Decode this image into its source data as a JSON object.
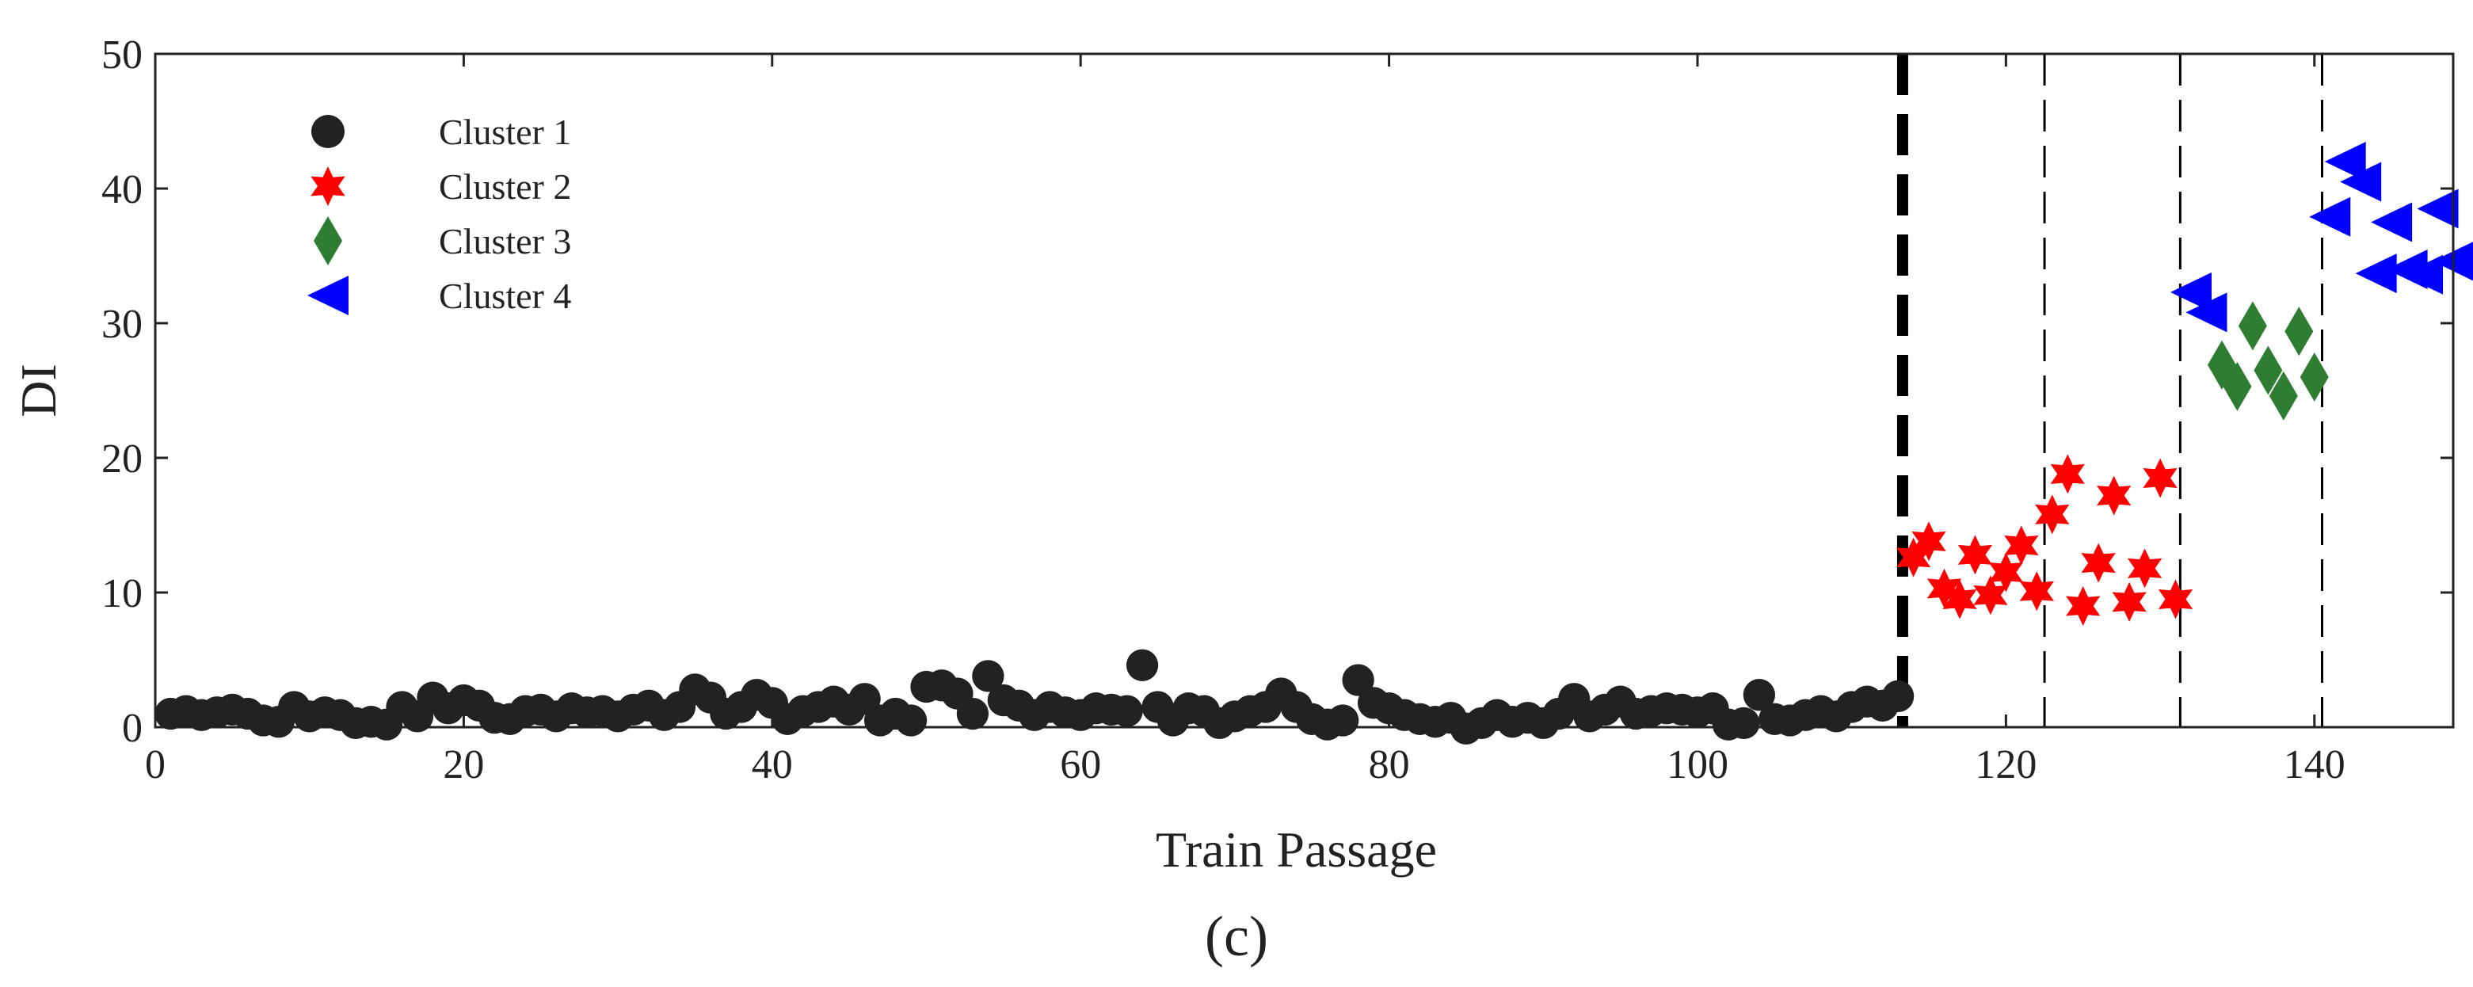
{
  "chart_data": {
    "type": "scatter",
    "title": "",
    "xlabel": "Train Passage",
    "ylabel": "DI",
    "caption": "(c)",
    "xlim": [
      0,
      149
    ],
    "ylim": [
      0,
      50
    ],
    "xticks": [
      0,
      20,
      40,
      60,
      80,
      100,
      120,
      140
    ],
    "yticks": [
      0,
      10,
      20,
      30,
      40,
      50
    ],
    "grid": false,
    "legend_position": "top-left",
    "thresholds": [
      {
        "x": 113.3,
        "style": "thick-dashed",
        "color": "#000000"
      },
      {
        "x": 122.5,
        "style": "thin-dashed",
        "color": "#000000"
      },
      {
        "x": 131.3,
        "style": "thin-dashed",
        "color": "#000000"
      },
      {
        "x": 140.5,
        "style": "thin-dashed",
        "color": "#000000"
      }
    ],
    "series": [
      {
        "name": "Cluster 1",
        "marker": "circle",
        "color": "#222222",
        "points": [
          [
            1,
            1.0
          ],
          [
            2,
            1.2
          ],
          [
            3,
            0.9
          ],
          [
            4,
            1.1
          ],
          [
            5,
            1.3
          ],
          [
            6,
            1.0
          ],
          [
            7,
            0.5
          ],
          [
            8,
            0.4
          ],
          [
            9,
            1.5
          ],
          [
            10,
            0.8
          ],
          [
            11,
            1.1
          ],
          [
            12,
            0.9
          ],
          [
            13,
            0.3
          ],
          [
            14,
            0.4
          ],
          [
            15,
            0.2
          ],
          [
            16,
            1.5
          ],
          [
            17,
            0.8
          ],
          [
            18,
            2.2
          ],
          [
            19,
            1.4
          ],
          [
            20,
            2.0
          ],
          [
            21,
            1.6
          ],
          [
            22,
            0.7
          ],
          [
            23,
            0.6
          ],
          [
            24,
            1.2
          ],
          [
            25,
            1.3
          ],
          [
            26,
            0.8
          ],
          [
            27,
            1.4
          ],
          [
            28,
            1.1
          ],
          [
            29,
            1.2
          ],
          [
            30,
            0.8
          ],
          [
            31,
            1.3
          ],
          [
            32,
            1.6
          ],
          [
            33,
            0.9
          ],
          [
            34,
            1.5
          ],
          [
            35,
            2.8
          ],
          [
            36,
            2.2
          ],
          [
            37,
            1.0
          ],
          [
            38,
            1.5
          ],
          [
            39,
            2.4
          ],
          [
            40,
            1.8
          ],
          [
            41,
            0.6
          ],
          [
            42,
            1.2
          ],
          [
            43,
            1.5
          ],
          [
            44,
            1.9
          ],
          [
            45,
            1.3
          ],
          [
            46,
            2.1
          ],
          [
            47,
            0.5
          ],
          [
            48,
            1.0
          ],
          [
            49,
            0.5
          ],
          [
            50,
            3.0
          ],
          [
            51,
            3.1
          ],
          [
            52,
            2.5
          ],
          [
            53,
            1.0
          ],
          [
            54,
            3.8
          ],
          [
            55,
            2.0
          ],
          [
            56,
            1.6
          ],
          [
            57,
            0.9
          ],
          [
            58,
            1.5
          ],
          [
            59,
            1.1
          ],
          [
            60,
            0.9
          ],
          [
            61,
            1.4
          ],
          [
            62,
            1.3
          ],
          [
            63,
            1.2
          ],
          [
            64,
            4.6
          ],
          [
            65,
            1.5
          ],
          [
            66,
            0.5
          ],
          [
            67,
            1.4
          ],
          [
            68,
            1.2
          ],
          [
            69,
            0.3
          ],
          [
            70,
            0.8
          ],
          [
            71,
            1.2
          ],
          [
            72,
            1.5
          ],
          [
            73,
            2.5
          ],
          [
            74,
            1.5
          ],
          [
            75,
            0.6
          ],
          [
            76,
            0.2
          ],
          [
            77,
            0.5
          ],
          [
            78,
            3.5
          ],
          [
            79,
            1.8
          ],
          [
            80,
            1.4
          ],
          [
            81,
            0.9
          ],
          [
            82,
            0.6
          ],
          [
            83,
            0.4
          ],
          [
            84,
            0.7
          ],
          [
            85,
            -0.1
          ],
          [
            86,
            0.3
          ],
          [
            87,
            0.9
          ],
          [
            88,
            0.4
          ],
          [
            89,
            0.7
          ],
          [
            90,
            0.3
          ],
          [
            91,
            1.0
          ],
          [
            92,
            2.1
          ],
          [
            93,
            0.8
          ],
          [
            94,
            1.3
          ],
          [
            95,
            1.9
          ],
          [
            96,
            1.0
          ],
          [
            97,
            1.2
          ],
          [
            98,
            1.4
          ],
          [
            99,
            1.3
          ],
          [
            100,
            1.1
          ],
          [
            101,
            1.4
          ],
          [
            102,
            0.2
          ],
          [
            103,
            0.3
          ],
          [
            104,
            2.4
          ],
          [
            105,
            0.6
          ],
          [
            106,
            0.5
          ],
          [
            107,
            0.9
          ],
          [
            108,
            1.2
          ],
          [
            109,
            0.8
          ],
          [
            110,
            1.5
          ],
          [
            111,
            1.9
          ],
          [
            112,
            1.6
          ],
          [
            113,
            2.3
          ]
        ]
      },
      {
        "name": "Cluster 2",
        "marker": "star",
        "color": "#ff0000",
        "points": [
          [
            114,
            12.6
          ],
          [
            115,
            13.8
          ],
          [
            116,
            10.3
          ],
          [
            117,
            9.5
          ],
          [
            118,
            12.8
          ],
          [
            119,
            9.8
          ],
          [
            120,
            11.5
          ],
          [
            121,
            13.5
          ],
          [
            122,
            10.1
          ],
          [
            123,
            15.8
          ],
          [
            124,
            18.8
          ],
          [
            125,
            9.0
          ],
          [
            126,
            12.2
          ],
          [
            127,
            17.2
          ],
          [
            128,
            9.3
          ],
          [
            129,
            11.8
          ],
          [
            130,
            18.5
          ],
          [
            131,
            9.5
          ]
        ]
      },
      {
        "name": "Cluster 3",
        "marker": "diamond",
        "color": "#2e7d32",
        "points": [
          [
            134,
            26.9
          ],
          [
            135,
            25.3
          ],
          [
            136,
            29.8
          ],
          [
            137,
            26.5
          ],
          [
            138,
            24.6
          ],
          [
            139,
            29.4
          ],
          [
            140,
            26.0
          ]
        ]
      },
      {
        "name": "Cluster 4",
        "marker": "triangle-left",
        "color": "#0000ff",
        "points": [
          [
            132,
            32.3
          ],
          [
            133,
            30.8
          ],
          [
            141,
            37.9
          ],
          [
            142,
            42.0
          ],
          [
            143,
            40.5
          ],
          [
            144,
            33.7
          ],
          [
            145,
            37.5
          ],
          [
            146,
            34.0
          ],
          [
            147,
            33.6
          ],
          [
            148,
            38.5
          ],
          [
            149,
            34.6
          ]
        ]
      }
    ]
  }
}
